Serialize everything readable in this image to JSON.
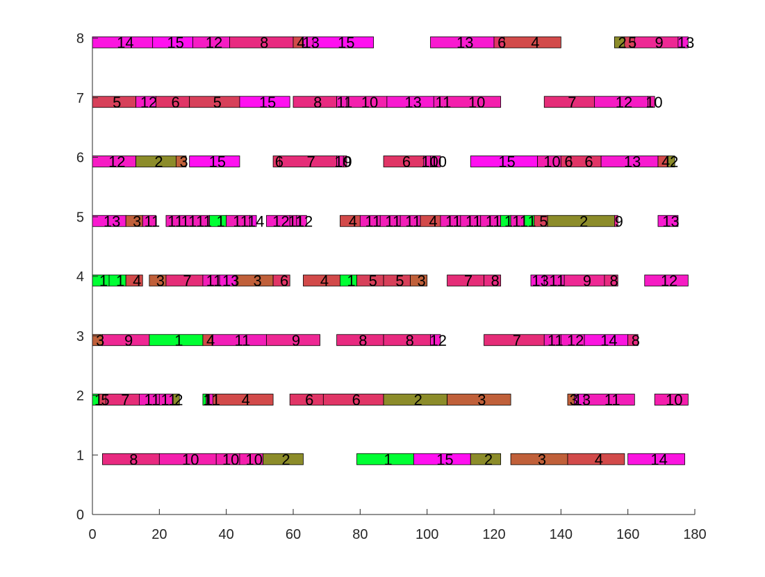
{
  "chart_data": {
    "type": "bar",
    "orientation": "horizontal-gantt",
    "xlim": [
      0,
      180
    ],
    "ylim": [
      0,
      8
    ],
    "x_ticks": [
      "0",
      "20",
      "40",
      "60",
      "80",
      "100",
      "120",
      "140",
      "160",
      "180"
    ],
    "y_ticks": [
      "0",
      "1",
      "2",
      "3",
      "4",
      "5",
      "6",
      "7",
      "8"
    ],
    "grid": false,
    "colors": {
      "1": "#00ff33",
      "2": "#8c8c2a",
      "3": "#c0603a",
      "4": "#d24a4a",
      "5": "#d7405a",
      "6": "#e03566",
      "7": "#e52d78",
      "8": "#e82a80",
      "9": "#ee2894",
      "10": "#f41fad",
      "11": "#f21eb8",
      "12": "#f61cc4",
      "13": "#f81ad0",
      "14": "#fb15e0",
      "15": "#ff10f0"
    },
    "rows": [
      {
        "y": 1,
        "tasks": [
          {
            "label": "8",
            "start": 3,
            "end": 20
          },
          {
            "label": "10",
            "start": 20,
            "end": 37
          },
          {
            "label": "10",
            "start": 37,
            "end": 44
          },
          {
            "label": "10",
            "start": 44,
            "end": 51
          },
          {
            "label": "2",
            "start": 51,
            "end": 63
          },
          {
            "label": "1",
            "start": 79,
            "end": 96
          },
          {
            "label": "15",
            "start": 96,
            "end": 113
          },
          {
            "label": "2",
            "start": 113,
            "end": 122
          },
          {
            "label": "3",
            "start": 125,
            "end": 142
          },
          {
            "label": "4",
            "start": 142,
            "end": 159
          },
          {
            "label": "14",
            "start": 160,
            "end": 177
          }
        ]
      },
      {
        "y": 2,
        "tasks": [
          {
            "label": "1",
            "start": 0,
            "end": 2
          },
          {
            "label": "5",
            "start": 2,
            "end": 4
          },
          {
            "label": "7",
            "start": 4,
            "end": 14
          },
          {
            "label": "11",
            "start": 14,
            "end": 20
          },
          {
            "label": "11",
            "start": 20,
            "end": 24
          },
          {
            "label": "2",
            "start": 24,
            "end": 26
          },
          {
            "label": "1",
            "start": 33,
            "end": 34
          },
          {
            "label": "11",
            "start": 34,
            "end": 36
          },
          {
            "label": "4",
            "start": 36,
            "end": 54
          },
          {
            "label": "6",
            "start": 59,
            "end": 69
          },
          {
            "label": "6",
            "start": 69,
            "end": 87
          },
          {
            "label": "2",
            "start": 87,
            "end": 106
          },
          {
            "label": "3",
            "start": 106,
            "end": 125
          },
          {
            "label": "3",
            "start": 142,
            "end": 144
          },
          {
            "label": "13",
            "start": 144,
            "end": 147
          },
          {
            "label": "11",
            "start": 147,
            "end": 162
          },
          {
            "label": "10",
            "start": 168,
            "end": 178
          }
        ]
      },
      {
        "y": 3,
        "tasks": [
          {
            "label": "3",
            "start": 0,
            "end": 3
          },
          {
            "label": "9",
            "start": 3,
            "end": 17
          },
          {
            "label": "1",
            "start": 17,
            "end": 33
          },
          {
            "label": "4",
            "start": 33,
            "end": 36
          },
          {
            "label": "11",
            "start": 36,
            "end": 52
          },
          {
            "label": "9",
            "start": 52,
            "end": 68
          },
          {
            "label": "8",
            "start": 73,
            "end": 87
          },
          {
            "label": "8",
            "start": 87,
            "end": 101
          },
          {
            "label": "12",
            "start": 101,
            "end": 104
          },
          {
            "label": "7",
            "start": 117,
            "end": 135
          },
          {
            "label": "11",
            "start": 135,
            "end": 140
          },
          {
            "label": "12",
            "start": 140,
            "end": 147
          },
          {
            "label": "14",
            "start": 147,
            "end": 160
          },
          {
            "label": "8",
            "start": 160,
            "end": 163
          }
        ]
      },
      {
        "y": 4,
        "tasks": [
          {
            "label": "1",
            "start": 0,
            "end": 5
          },
          {
            "label": "1",
            "start": 5,
            "end": 10
          },
          {
            "label": "4",
            "start": 10,
            "end": 15
          },
          {
            "label": "3",
            "start": 17,
            "end": 22
          },
          {
            "label": "7",
            "start": 22,
            "end": 33
          },
          {
            "label": "11",
            "start": 33,
            "end": 38
          },
          {
            "label": "13",
            "start": 38,
            "end": 43
          },
          {
            "label": "3",
            "start": 43,
            "end": 54
          },
          {
            "label": "6",
            "start": 54,
            "end": 59
          },
          {
            "label": "4",
            "start": 63,
            "end": 74
          },
          {
            "label": "1",
            "start": 74,
            "end": 79
          },
          {
            "label": "5",
            "start": 79,
            "end": 87
          },
          {
            "label": "5",
            "start": 87,
            "end": 95
          },
          {
            "label": "3",
            "start": 95,
            "end": 100
          },
          {
            "label": "7",
            "start": 106,
            "end": 117
          },
          {
            "label": "8",
            "start": 117,
            "end": 122
          },
          {
            "label": "13",
            "start": 131,
            "end": 135
          },
          {
            "label": "11",
            "start": 135,
            "end": 141
          },
          {
            "label": "9",
            "start": 141,
            "end": 153
          },
          {
            "label": "8",
            "start": 153,
            "end": 157
          },
          {
            "label": "12",
            "start": 165,
            "end": 178
          }
        ]
      },
      {
        "y": 5,
        "tasks": [
          {
            "label": "13",
            "start": 0,
            "end": 10
          },
          {
            "label": "3",
            "start": 10,
            "end": 15
          },
          {
            "label": "11",
            "start": 15,
            "end": 19
          },
          {
            "label": "11",
            "start": 22,
            "end": 26
          },
          {
            "label": "11",
            "start": 26,
            "end": 30
          },
          {
            "label": "11",
            "start": 30,
            "end": 35
          },
          {
            "label": "1",
            "start": 35,
            "end": 40
          },
          {
            "label": "11",
            "start": 40,
            "end": 47
          },
          {
            "label": "14",
            "start": 47,
            "end": 49
          },
          {
            "label": "12",
            "start": 52,
            "end": 59
          },
          {
            "label": "11",
            "start": 59,
            "end": 61
          },
          {
            "label": "12",
            "start": 61,
            "end": 64
          },
          {
            "label": "4",
            "start": 74,
            "end": 80
          },
          {
            "label": "11",
            "start": 80,
            "end": 86
          },
          {
            "label": "11",
            "start": 86,
            "end": 92
          },
          {
            "label": "11",
            "start": 92,
            "end": 98
          },
          {
            "label": "4",
            "start": 98,
            "end": 104
          },
          {
            "label": "11",
            "start": 104,
            "end": 110
          },
          {
            "label": "11",
            "start": 110,
            "end": 116
          },
          {
            "label": "11",
            "start": 116,
            "end": 122
          },
          {
            "label": "1",
            "start": 122,
            "end": 125
          },
          {
            "label": "11",
            "start": 125,
            "end": 129
          },
          {
            "label": "1",
            "start": 129,
            "end": 132
          },
          {
            "label": "5",
            "start": 132,
            "end": 136
          },
          {
            "label": "2",
            "start": 136,
            "end": 156
          },
          {
            "label": "9",
            "start": 156,
            "end": 157
          },
          {
            "label": "13",
            "start": 169,
            "end": 175
          }
        ]
      },
      {
        "y": 6,
        "tasks": [
          {
            "label": "12",
            "start": 0,
            "end": 13
          },
          {
            "label": "2",
            "start": 13,
            "end": 25
          },
          {
            "label": "3",
            "start": 25,
            "end": 28
          },
          {
            "label": "15",
            "start": 29,
            "end": 44
          },
          {
            "label": "6",
            "start": 54,
            "end": 56
          },
          {
            "label": "7",
            "start": 56,
            "end": 73
          },
          {
            "label": "10",
            "start": 73,
            "end": 75
          },
          {
            "label": "9",
            "start": 75,
            "end": 76
          },
          {
            "label": "6",
            "start": 87,
            "end": 99
          },
          {
            "label": "10",
            "start": 99,
            "end": 101
          },
          {
            "label": "10",
            "start": 101,
            "end": 104
          },
          {
            "label": "15",
            "start": 113,
            "end": 133
          },
          {
            "label": "10",
            "start": 133,
            "end": 140
          },
          {
            "label": "6",
            "start": 140,
            "end": 143
          },
          {
            "label": "6",
            "start": 143,
            "end": 152
          },
          {
            "label": "13",
            "start": 152,
            "end": 169
          },
          {
            "label": "4",
            "start": 169,
            "end": 172
          },
          {
            "label": "2",
            "start": 172,
            "end": 174
          }
        ]
      },
      {
        "y": 7,
        "tasks": [
          {
            "label": "5",
            "start": 0,
            "end": 13
          },
          {
            "label": "12",
            "start": 13,
            "end": 19
          },
          {
            "label": "6",
            "start": 19,
            "end": 29
          },
          {
            "label": "5",
            "start": 29,
            "end": 44
          },
          {
            "label": "15",
            "start": 44,
            "end": 59
          },
          {
            "label": "8",
            "start": 60,
            "end": 73
          },
          {
            "label": "11",
            "start": 73,
            "end": 76
          },
          {
            "label": "10",
            "start": 76,
            "end": 88
          },
          {
            "label": "13",
            "start": 88,
            "end": 102
          },
          {
            "label": "11",
            "start": 102,
            "end": 106
          },
          {
            "label": "10",
            "start": 106,
            "end": 122
          },
          {
            "label": "7",
            "start": 135,
            "end": 150
          },
          {
            "label": "12",
            "start": 150,
            "end": 166
          },
          {
            "label": "10",
            "start": 166,
            "end": 168
          }
        ]
      },
      {
        "y": 8,
        "tasks": [
          {
            "label": "14",
            "start": 0,
            "end": 18
          },
          {
            "label": "15",
            "start": 18,
            "end": 30
          },
          {
            "label": "12",
            "start": 30,
            "end": 41
          },
          {
            "label": "8",
            "start": 41,
            "end": 60
          },
          {
            "label": "4",
            "start": 60,
            "end": 63
          },
          {
            "label": "13",
            "start": 63,
            "end": 66
          },
          {
            "label": "15",
            "start": 66,
            "end": 84
          },
          {
            "label": "13",
            "start": 101,
            "end": 120
          },
          {
            "label": "6",
            "start": 120,
            "end": 123
          },
          {
            "label": "4",
            "start": 123,
            "end": 140
          },
          {
            "label": "2",
            "start": 156,
            "end": 159
          },
          {
            "label": "5",
            "start": 159,
            "end": 162
          },
          {
            "label": "9",
            "start": 162,
            "end": 175
          },
          {
            "label": "13",
            "start": 175,
            "end": 178
          }
        ]
      }
    ]
  }
}
